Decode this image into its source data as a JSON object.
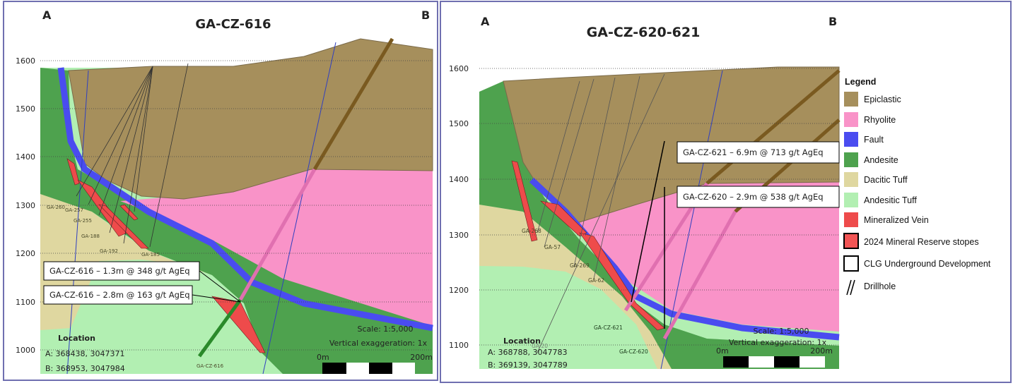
{
  "left": {
    "title": "GA-CZ-616",
    "a": "A",
    "b": "B",
    "elevations": [
      "1600",
      "1500",
      "1400",
      "1300",
      "1200",
      "1100",
      "1000"
    ],
    "callouts": [
      "GA-CZ-616 – 1.3m @ 348 g/t AgEq",
      "GA-CZ-616 – 2.8m @ 163 g/t AgEq"
    ],
    "holes": [
      "GA-260",
      "GA-257",
      "GA-255",
      "GA-188",
      "GA-192",
      "GA-185",
      "GA-CZ-616"
    ],
    "location": {
      "title": "Location",
      "a": "A:  368438, 3047371",
      "b": "B:  368953, 3047984"
    },
    "scale": {
      "scale": "Scale: 1:5,000",
      "ve": "Vertical exaggeration: 1x",
      "start": "0m",
      "end": "200m"
    }
  },
  "right": {
    "title": "GA-CZ-620-621",
    "a": "A",
    "b": "B",
    "elevations": [
      "1600",
      "1500",
      "1400",
      "1300",
      "1200",
      "1100"
    ],
    "callouts": [
      "GA-CZ-621 – 6.9m @ 713 g/t AgEq",
      "GA-CZ-620 – 2.9m @ 538 g/t AgEq"
    ],
    "holes": [
      "GA-268",
      "GA-57",
      "GA-269",
      "GA-62",
      "GA-CZ-621",
      "GA-CZ-620",
      "GA-20"
    ],
    "location": {
      "title": "Location",
      "a": "A: 368788, 3047783",
      "b": "B: 369139, 3047789"
    },
    "scale": {
      "scale": "Scale: 1:5,000",
      "ve": "Vertical exaggeration: 1x",
      "start": "0m",
      "end": "200m"
    }
  },
  "legend": {
    "title": "Legend",
    "items": [
      {
        "label": "Epiclastic",
        "color": "#a68f5c"
      },
      {
        "label": "Rhyolite",
        "color": "#f993c8"
      },
      {
        "label": "Fault",
        "color": "#4a4cf0"
      },
      {
        "label": "Andesite",
        "color": "#4ea24e"
      },
      {
        "label": "Dacitic Tuff",
        "color": "#dfd7a0"
      },
      {
        "label": "Andesitic Tuff",
        "color": "#b2efb2"
      },
      {
        "label": "Mineralized Vein",
        "color": "#ee4b4b"
      },
      {
        "label": "2024 Mineral Reserve stopes",
        "color": "#f25555"
      },
      {
        "label": "CLG Underground Development",
        "color": "#ffffff"
      },
      {
        "label": "Drillhole",
        "color": "#000000"
      }
    ]
  }
}
